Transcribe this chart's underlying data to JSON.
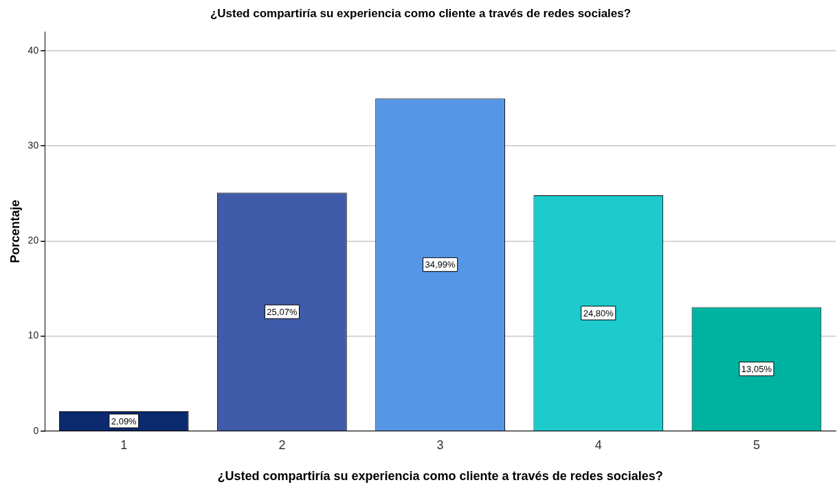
{
  "chart_data": {
    "type": "bar",
    "title": "¿Usted compartiría su experiencia como cliente a través de redes sociales?",
    "xlabel": "¿Usted compartiría su experiencia como cliente a través de redes sociales?",
    "ylabel": "Porcentaje",
    "categories": [
      "1",
      "2",
      "3",
      "4",
      "5"
    ],
    "values": [
      2.09,
      25.07,
      34.99,
      24.8,
      13.05
    ],
    "colors": [
      "#0b2a6f",
      "#3f5ba9",
      "#5596e5",
      "#1dcbcd",
      "#00b3a1"
    ],
    "value_labels": [
      "2,09%",
      "25,07%",
      "34,99%",
      "24,80%",
      "13,05%"
    ],
    "ylim": [
      0,
      42
    ],
    "yticks": [
      0,
      10,
      20,
      30,
      40
    ],
    "grid": "y",
    "legend": false
  }
}
